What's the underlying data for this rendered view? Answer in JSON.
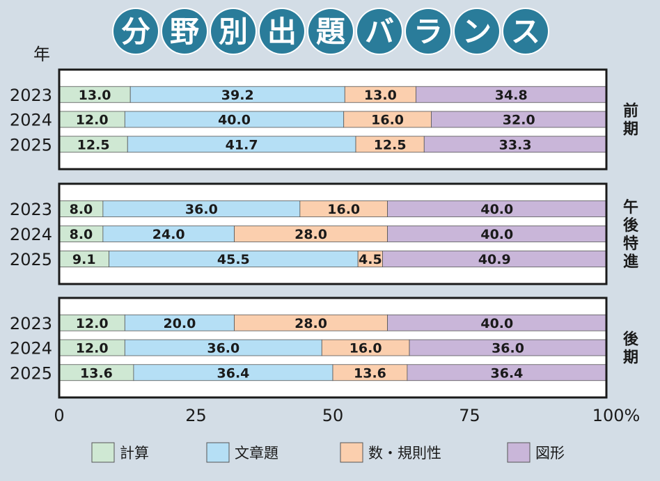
{
  "title": "分野別出題バランス",
  "y_unit_label": "年",
  "chart_data": {
    "type": "bar",
    "orientation": "horizontal",
    "stacked": true,
    "normalized": true,
    "xlim": [
      0,
      100
    ],
    "x_ticks": [
      "0",
      "25",
      "50",
      "75",
      "100%"
    ],
    "categories_legend": [
      {
        "name": "計算",
        "color": "#cfe8d3"
      },
      {
        "name": "文章題",
        "color": "#b5dff5"
      },
      {
        "name": "数・規則性",
        "color": "#fbcfae"
      },
      {
        "name": "図形",
        "color": "#c9b6d9"
      }
    ],
    "groups": [
      {
        "label": "前期",
        "rows": [
          {
            "year": "2023",
            "values": [
              13.0,
              39.2,
              13.0,
              34.8
            ]
          },
          {
            "year": "2024",
            "values": [
              12.0,
              40.0,
              16.0,
              32.0
            ]
          },
          {
            "year": "2025",
            "values": [
              12.5,
              41.7,
              12.5,
              33.3
            ]
          }
        ]
      },
      {
        "label": "午後特進",
        "rows": [
          {
            "year": "2023",
            "values": [
              8.0,
              36.0,
              16.0,
              40.0
            ]
          },
          {
            "year": "2024",
            "values": [
              8.0,
              24.0,
              28.0,
              40.0
            ]
          },
          {
            "year": "2025",
            "values": [
              9.1,
              45.5,
              4.5,
              40.9
            ]
          }
        ]
      },
      {
        "label": "後期",
        "rows": [
          {
            "year": "2023",
            "values": [
              12.0,
              20.0,
              28.0,
              40.0
            ]
          },
          {
            "year": "2024",
            "values": [
              12.0,
              36.0,
              16.0,
              36.0
            ]
          },
          {
            "year": "2025",
            "values": [
              13.6,
              36.4,
              13.6,
              36.4
            ]
          }
        ]
      }
    ]
  }
}
